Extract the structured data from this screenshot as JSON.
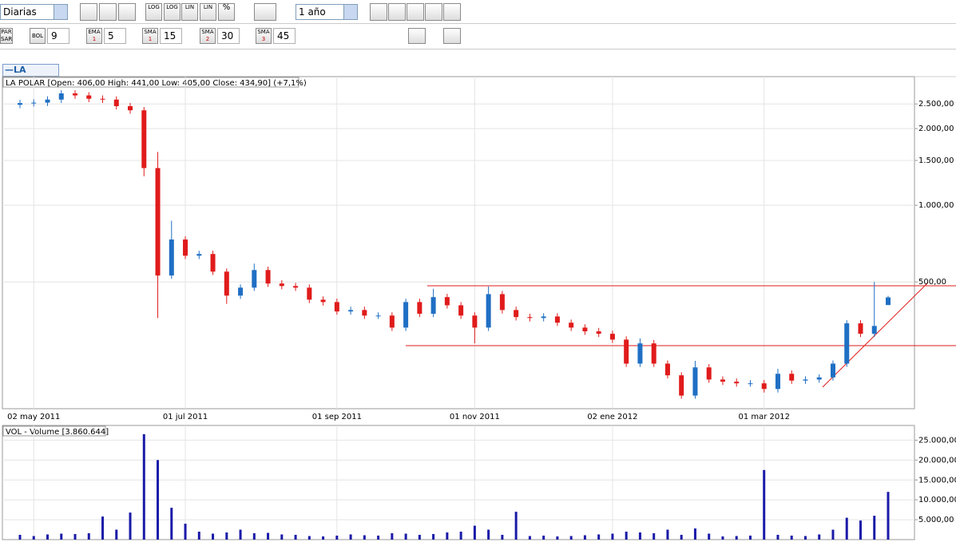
{
  "toolbar": {
    "period": "Diarias",
    "range": "1 año",
    "scale_buttons": [
      "LOG",
      "LOG",
      "LIN",
      "LIN",
      "%"
    ],
    "par_sar": [
      "PAR",
      "SAR"
    ],
    "indicators": [
      {
        "name": "BOL",
        "value": "9"
      },
      {
        "name": "EMA",
        "sub": "1",
        "value": "5"
      },
      {
        "name": "SMA",
        "sub": "1",
        "value": "15"
      },
      {
        "name": "SMA",
        "sub": "2",
        "value": "30"
      },
      {
        "name": "SMA",
        "sub": "3",
        "value": "45"
      }
    ],
    "legend_tab": "—LA POLAR"
  },
  "chart_data": [
    {
      "type": "candlestick",
      "title": "LA POLAR [Open: 406,00  High: 441,00  Low: 405,00  Close: 434,90] (+7,1%)",
      "categories": [
        null,
        "02 may 2011",
        null,
        null,
        null,
        null,
        null,
        null,
        null,
        null,
        null,
        null,
        "01 jul 2011",
        null,
        null,
        null,
        null,
        null,
        null,
        null,
        null,
        null,
        null,
        "01 sep 2011",
        null,
        null,
        null,
        null,
        null,
        null,
        null,
        null,
        null,
        "01 nov 2011",
        null,
        null,
        null,
        null,
        null,
        null,
        null,
        null,
        null,
        "02 ene 2012",
        null,
        null,
        null,
        null,
        null,
        null,
        null,
        null,
        null,
        null,
        "01 mar 2012",
        null,
        null,
        null,
        null,
        null,
        null,
        null,
        null,
        null
      ],
      "open": [
        2480,
        2520,
        2530,
        2600,
        2750,
        2700,
        2620,
        2600,
        2450,
        2360,
        1400,
        530,
        734,
        634,
        644,
        549,
        442,
        475,
        557,
        493,
        482,
        475,
        426,
        417,
        383,
        388,
        369,
        369,
        331,
        417,
        375,
        436,
        405,
        369,
        331,
        448,
        388,
        364,
        361,
        366,
        346,
        331,
        320,
        313,
        297,
        239,
        287,
        239,
        215,
        179,
        231,
        207,
        203,
        200,
        200,
        190,
        218,
        205,
        207,
        211,
        239,
        344,
        313,
        406
      ],
      "high": [
        2596,
        2606,
        2678,
        2833,
        2833,
        2781,
        2699,
        2678,
        2524,
        2431,
        1620,
        870,
        756,
        663,
        663,
        565,
        489,
        590,
        574,
        508,
        496,
        489,
        439,
        430,
        400,
        400,
        380,
        380,
        430,
        430,
        470,
        449,
        417,
        380,
        480,
        461,
        400,
        375,
        377,
        377,
        356,
        341,
        330,
        322,
        306,
        300,
        296,
        246,
        221,
        245,
        238,
        213,
        209,
        206,
        206,
        228,
        225,
        213,
        217,
        246,
        354,
        354,
        500,
        441
      ],
      "low": [
        2406,
        2444,
        2454,
        2522,
        2619,
        2541,
        2522,
        2377,
        2289,
        1300,
        361,
        514,
        615,
        615,
        533,
        410,
        429,
        461,
        478,
        468,
        461,
        413,
        404,
        372,
        372,
        358,
        358,
        321,
        321,
        364,
        364,
        393,
        358,
        287,
        321,
        376,
        353,
        350,
        350,
        336,
        321,
        310,
        304,
        288,
        232,
        232,
        232,
        209,
        174,
        174,
        201,
        197,
        194,
        194,
        184,
        184,
        199,
        199,
        201,
        205,
        232,
        304,
        304,
        405
      ],
      "close": [
        2520,
        2530,
        2600,
        2750,
        2700,
        2620,
        2600,
        2450,
        2360,
        1400,
        530,
        734,
        634,
        644,
        549,
        442,
        475,
        557,
        493,
        482,
        475,
        426,
        417,
        383,
        388,
        369,
        369,
        331,
        417,
        375,
        436,
        405,
        369,
        331,
        448,
        388,
        364,
        361,
        366,
        346,
        331,
        320,
        313,
        297,
        239,
        287,
        239,
        215,
        179,
        231,
        207,
        203,
        200,
        200,
        190,
        218,
        205,
        207,
        211,
        239,
        344,
        313,
        336,
        434.9
      ],
      "up_color": "#1f6fc4",
      "down_color": "#e01b1b",
      "log_scale": true,
      "grid": true,
      "ylim": [
        159,
        3200
      ],
      "yticks": [
        {
          "value": 500,
          "label": "500,00"
        },
        {
          "value": 1000,
          "label": "1.000,00"
        },
        {
          "value": 1500,
          "label": "1.500,00"
        },
        {
          "value": 2000,
          "label": "2.000,00"
        },
        {
          "value": 2500,
          "label": "2.500,00"
        }
      ]
    },
    {
      "type": "bar",
      "title": "VOL - Volume [3.860.644]",
      "categories": [
        null,
        null,
        null,
        null,
        null,
        null,
        null,
        null,
        null,
        null,
        null,
        null,
        null,
        null,
        null,
        null,
        null,
        null,
        null,
        null,
        null,
        null,
        null,
        null,
        null,
        null,
        null,
        null,
        null,
        null,
        null,
        null,
        null,
        null,
        null,
        null,
        null,
        null,
        null,
        null,
        null,
        null,
        null,
        null,
        null,
        null,
        null,
        null,
        null,
        null,
        null,
        null,
        null,
        null,
        null,
        null,
        null,
        null,
        null,
        null,
        null,
        null,
        null,
        null
      ],
      "values": [
        1200,
        900,
        1300,
        1500,
        1400,
        1600,
        5800,
        2500,
        6800,
        26500,
        20000,
        8000,
        4000,
        2000,
        1500,
        1800,
        2500,
        1600,
        1700,
        1300,
        1200,
        900,
        800,
        1000,
        1300,
        1100,
        1000,
        1600,
        1500,
        1200,
        1400,
        1800,
        2000,
        3500,
        2500,
        1200,
        7000,
        900,
        1000,
        800,
        900,
        1100,
        1300,
        1500,
        2000,
        1800,
        1600,
        2500,
        1200,
        2800,
        1500,
        800,
        900,
        1000,
        17500,
        1200,
        1000,
        900,
        1300,
        2500,
        5500,
        4800,
        6000,
        12000
      ],
      "color": "#1a1aa8",
      "grid": true,
      "ylim": [
        0,
        28700
      ],
      "yticks": [
        {
          "value": 5000,
          "label": "5.000,00"
        },
        {
          "value": 10000,
          "label": "10.000,00"
        },
        {
          "value": 15000,
          "label": "15.000,00"
        },
        {
          "value": 20000,
          "label": "20.000,00"
        },
        {
          "value": 25000,
          "label": "25.000,00"
        }
      ]
    }
  ]
}
